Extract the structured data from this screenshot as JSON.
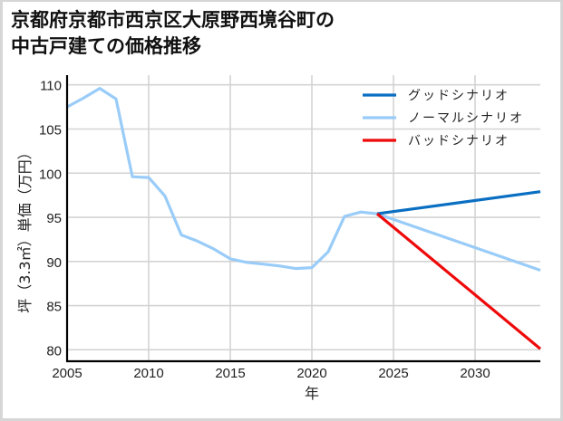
{
  "title": {
    "line1": "京都府京都市西京区大原野西境谷町の",
    "line2": "中古戸建ての価格推移"
  },
  "colors": {
    "good": "#0a6fc2",
    "normal": "#99ccf8",
    "bad": "#ee0a0a",
    "grid": "#d3d3d3",
    "axis": "#000000"
  },
  "chart_data": {
    "type": "line",
    "title": "京都府京都市西京区大原野西境谷町の中古戸建ての価格推移",
    "xlabel": "年",
    "ylabel": "坪（3.3㎡）単価（万円）",
    "xlim": [
      2005,
      2034
    ],
    "ylim": [
      78.7,
      111.1
    ],
    "xticks": [
      2005,
      2010,
      2015,
      2020,
      2025,
      2030
    ],
    "yticks": [
      80,
      85,
      90,
      95,
      100,
      105,
      110
    ],
    "grid": true,
    "legend_position": "upper right",
    "series": [
      {
        "name": "グッドシナリオ",
        "key": "good",
        "x": [
          2024,
          2034
        ],
        "values": [
          95.4,
          97.9
        ]
      },
      {
        "name": "ノーマルシナリオ",
        "key": "normal",
        "x": [
          2005,
          2006,
          2007,
          2008,
          2009,
          2010,
          2011,
          2012,
          2013,
          2014,
          2015,
          2016,
          2017,
          2018,
          2019,
          2020,
          2021,
          2022,
          2023,
          2024,
          2034
        ],
        "values": [
          107.5,
          108.5,
          109.6,
          108.4,
          99.6,
          99.5,
          97.4,
          93.0,
          92.3,
          91.4,
          90.3,
          89.9,
          89.7,
          89.5,
          89.2,
          89.3,
          91.1,
          95.1,
          95.6,
          95.4,
          89.0
        ]
      },
      {
        "name": "バッドシナリオ",
        "key": "bad",
        "x": [
          2024,
          2034
        ],
        "values": [
          95.4,
          80.1
        ]
      }
    ]
  },
  "legend": {
    "items": [
      {
        "label": "グッドシナリオ",
        "key": "good"
      },
      {
        "label": "ノーマルシナリオ",
        "key": "normal"
      },
      {
        "label": "バッドシナリオ",
        "key": "bad"
      }
    ]
  }
}
